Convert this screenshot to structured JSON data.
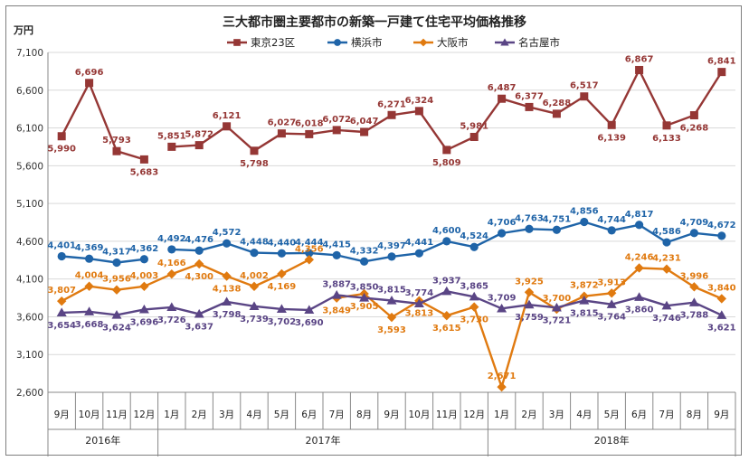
{
  "chart_data": {
    "type": "line",
    "title": "三大都市圏主要都市の新築一戸建て住宅平均価格推移",
    "ylabel": "万円",
    "ylim": [
      2600,
      7100
    ],
    "yticks": [
      2600,
      3100,
      3600,
      4100,
      4600,
      5100,
      5600,
      6100,
      6600,
      7100
    ],
    "ytick_labels": [
      "2,600",
      "3,100",
      "3,600",
      "4,100",
      "4,600",
      "5,100",
      "5,600",
      "6,100",
      "6,600",
      "7,100"
    ],
    "x": [
      "9月",
      "10月",
      "11月",
      "12月",
      "1月",
      "2月",
      "3月",
      "4月",
      "5月",
      "6月",
      "7月",
      "8月",
      "9月",
      "10月",
      "11月",
      "12月",
      "1月",
      "2月",
      "3月",
      "4月",
      "5月",
      "6月",
      "7月",
      "8月",
      "9月"
    ],
    "years": [
      {
        "label": "2016年",
        "start": 0,
        "end": 3
      },
      {
        "label": "2017年",
        "start": 4,
        "end": 15
      },
      {
        "label": "2018年",
        "start": 16,
        "end": 24
      }
    ],
    "grid": true,
    "legend": "top",
    "series": [
      {
        "name": "東京23区",
        "color": "#953735",
        "marker": "square",
        "segments": [
          [
            0,
            3
          ],
          [
            4,
            24
          ]
        ],
        "values": [
          5990,
          6696,
          5793,
          5683,
          5851,
          5872,
          6121,
          5798,
          6027,
          6018,
          6072,
          6047,
          6271,
          6324,
          5809,
          5981,
          6487,
          6377,
          6288,
          6517,
          6139,
          6867,
          6133,
          6268,
          6841
        ],
        "labels": [
          "5,990",
          "6,696",
          "5,793",
          "5,683",
          "5,851",
          "5,872",
          "6,121",
          "5,798",
          "6,027",
          "6,018",
          "6,072",
          "6,047",
          "6,271",
          "6,324",
          "5,809",
          "5,981",
          "6,487",
          "6,377",
          "6,288",
          "6,517",
          "6,139",
          "6,867",
          "6,133",
          "6,268",
          "6,841"
        ]
      },
      {
        "name": "横浜市",
        "color": "#1f64a8",
        "marker": "circle",
        "segments": [
          [
            0,
            3
          ],
          [
            4,
            24
          ]
        ],
        "values": [
          4401,
          4369,
          4317,
          4362,
          4492,
          4476,
          4572,
          4448,
          4440,
          4444,
          4415,
          4332,
          4397,
          4441,
          4600,
          4524,
          4706,
          4763,
          4751,
          4856,
          4744,
          4817,
          4586,
          4709,
          4672
        ],
        "labels": [
          "4,401",
          "4,369",
          "4,317",
          "4,362",
          "4,492",
          "4,476",
          "4,572",
          "4,448",
          "4,440",
          "4,444",
          "4,415",
          "4,332",
          "4,397",
          "4,441",
          "4,600",
          "4,524",
          "4,706",
          "4,763",
          "4,751",
          "4,856",
          "4,744",
          "4,817",
          "4,586",
          "4,709",
          "4,672"
        ]
      },
      {
        "name": "大阪市",
        "color": "#e07a10",
        "marker": "diamond",
        "segments": [
          [
            0,
            9
          ],
          [
            10,
            24
          ]
        ],
        "values": [
          3807,
          4004,
          3956,
          4003,
          4166,
          4300,
          4138,
          4002,
          4169,
          4356,
          3849,
          3905,
          3593,
          3813,
          3615,
          3730,
          2671,
          3925,
          3700,
          3872,
          3913,
          4246,
          4231,
          3996,
          3840
        ],
        "labels": [
          "3,807",
          "4,004",
          "3,956",
          "4,003",
          "4,166",
          "4,300",
          "4,138",
          "4,002",
          "4,169",
          "4,356",
          "3,849",
          "3,905",
          "3,593",
          "3,813",
          "3,615",
          "3,730",
          "2,671",
          "3,925",
          "3,700",
          "3,872",
          "3,913",
          "4,246",
          "4,231",
          "3,996",
          "3,840"
        ]
      },
      {
        "name": "名古屋市",
        "color": "#5a4585",
        "marker": "triangle",
        "segments": [
          [
            0,
            24
          ]
        ],
        "values": [
          3654,
          3668,
          3624,
          3696,
          3726,
          3637,
          3798,
          3739,
          3702,
          3690,
          3887,
          3850,
          3815,
          3774,
          3937,
          3865,
          3709,
          3759,
          3721,
          3815,
          3764,
          3860,
          3746,
          3788,
          3621
        ],
        "labels": [
          "3,654",
          "3,668",
          "3,624",
          "3,696",
          "3,726",
          "3,637",
          "3,798",
          "3,739",
          "3,702",
          "3,690",
          "3,887",
          "3,850",
          "3,815",
          "3,774",
          "3,937",
          "3,865",
          "3,709",
          "3,759",
          "3,721",
          "3,815",
          "3,764",
          "3,860",
          "3,746",
          "3,788",
          "3,621"
        ]
      }
    ]
  }
}
